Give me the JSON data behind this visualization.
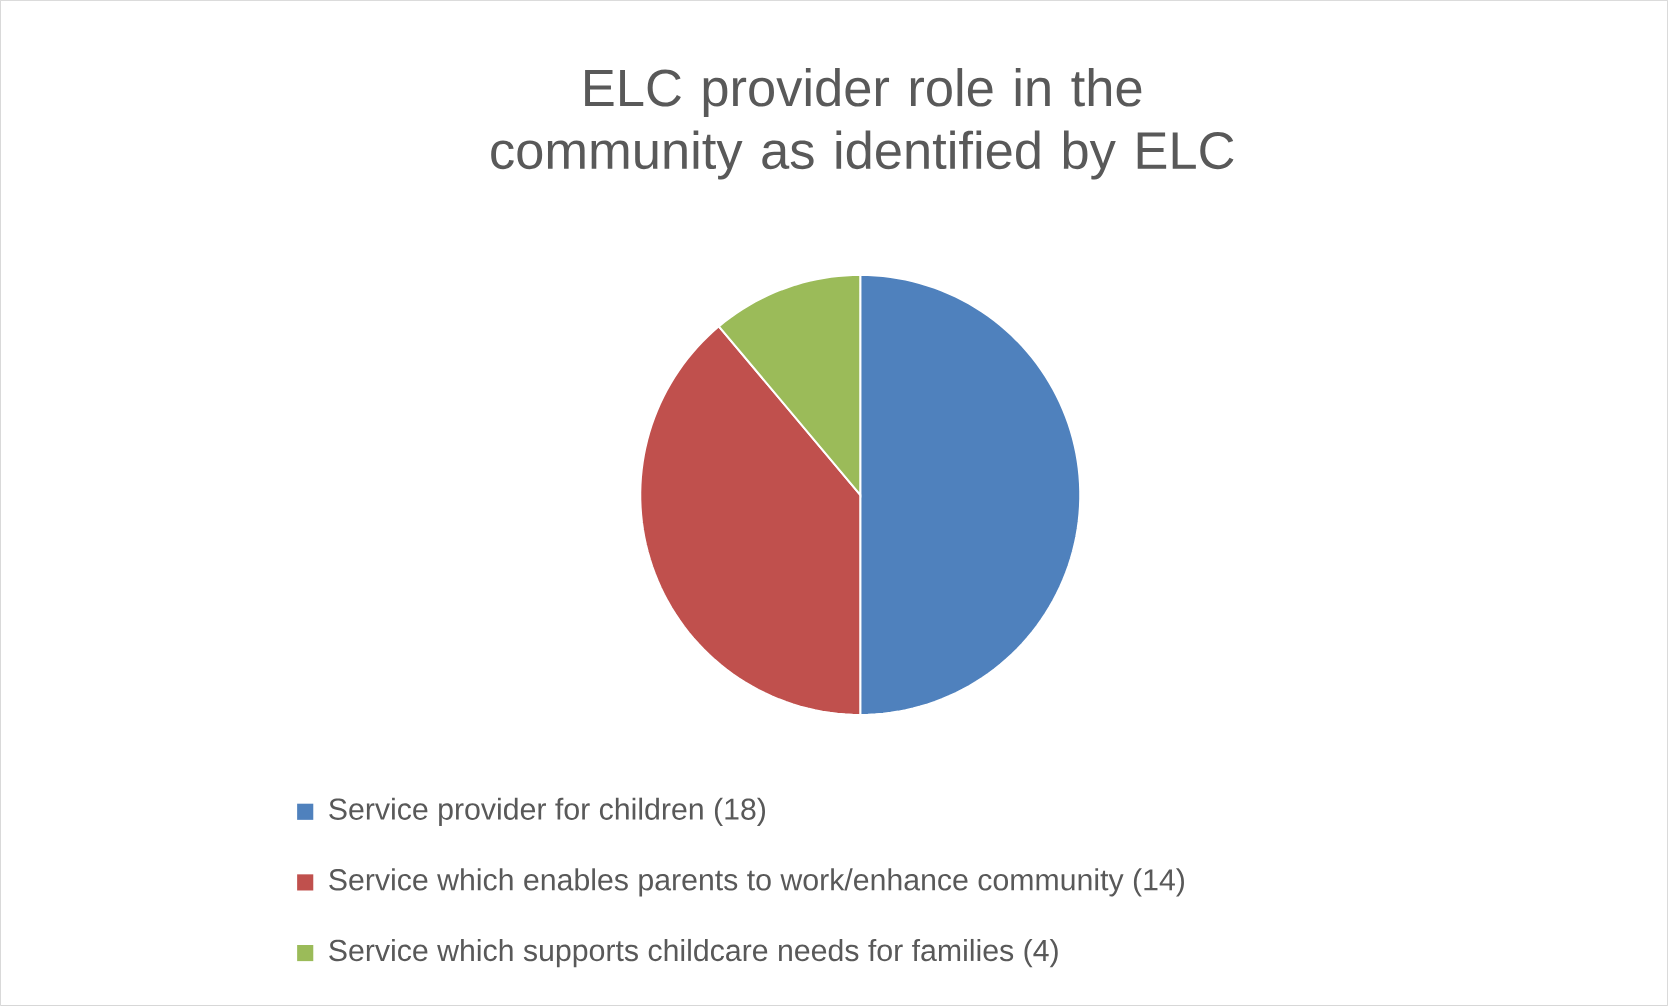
{
  "chart_data": {
    "type": "pie",
    "title": "ELC provider role in the community as identified by ELC",
    "categories": [
      "Service provider for children (18)",
      "Service which enables parents to work/enhance community (14)",
      "Service which supports childcare needs for families (4)"
    ],
    "values": [
      18,
      14,
      4
    ],
    "colors": [
      "#4f81bd",
      "#c0504d",
      "#9bbb59"
    ],
    "legend": "bottom"
  }
}
